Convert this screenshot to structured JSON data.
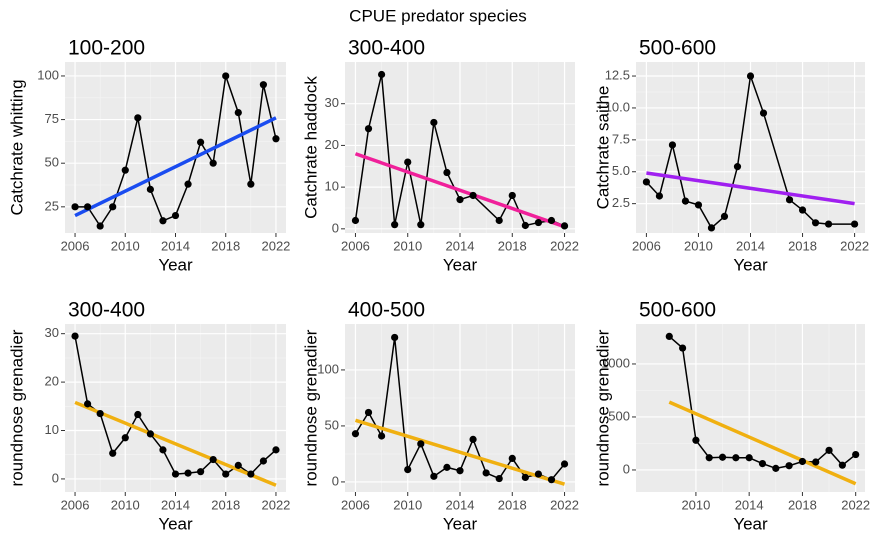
{
  "title": "CPUE predator species",
  "chart_data": [
    {
      "type": "line",
      "title": "100-200",
      "xlabel": "Year",
      "ylabel": "Catchrate whitting",
      "x": [
        2006,
        2007,
        2008,
        2009,
        2010,
        2011,
        2012,
        2013,
        2014,
        2015,
        2016,
        2017,
        2018,
        2019,
        2020,
        2021,
        2022
      ],
      "series": [
        {
          "color": "#000000",
          "values": [
            25,
            25,
            14,
            25,
            46,
            76,
            35,
            17,
            20,
            38,
            62,
            50,
            100,
            79,
            38,
            95,
            64
          ]
        }
      ],
      "trend": {
        "x": [
          2006,
          2022
        ],
        "values": [
          20,
          76
        ],
        "color": "#1a4cf0"
      },
      "xlim": [
        2005.2,
        2022.8
      ],
      "xticks": [
        2006,
        2010,
        2014,
        2018,
        2022
      ],
      "ylim": [
        10,
        108
      ],
      "yticks": [
        25,
        50,
        75,
        100
      ],
      "grid": true
    },
    {
      "type": "line",
      "title": "300-400",
      "xlabel": "Year",
      "ylabel": "Catchrate haddock",
      "x": [
        2006,
        2007,
        2008,
        2009,
        2010,
        2011,
        2012,
        2013,
        2014,
        2015,
        2017,
        2018,
        2019,
        2020,
        2021,
        2022
      ],
      "series": [
        {
          "color": "#000000",
          "values": [
            2,
            24,
            37,
            1,
            16,
            1,
            25.5,
            13.5,
            7,
            8,
            2,
            8,
            0.8,
            1.5,
            2,
            0.7
          ]
        }
      ],
      "trend": {
        "x": [
          2006,
          2022
        ],
        "values": [
          18,
          0.5
        ],
        "color": "#f0209a"
      },
      "xlim": [
        2005.2,
        2022.8
      ],
      "xticks": [
        2006,
        2010,
        2014,
        2018,
        2022
      ],
      "ylim": [
        -1,
        40
      ],
      "yticks": [
        0,
        10,
        20,
        30
      ],
      "grid": true
    },
    {
      "type": "line",
      "title": "500-600",
      "xlabel": "Year",
      "ylabel": "Catchrate saithe",
      "x": [
        2006,
        2007,
        2008,
        2009,
        2010,
        2011,
        2012,
        2013,
        2014,
        2015,
        2017,
        2018,
        2019,
        2020,
        2022
      ],
      "series": [
        {
          "color": "#000000",
          "values": [
            4.2,
            3.1,
            7.1,
            2.7,
            2.4,
            0.6,
            1.5,
            5.4,
            12.5,
            9.6,
            2.8,
            2.0,
            1.0,
            0.9,
            0.9
          ]
        }
      ],
      "trend": {
        "x": [
          2006,
          2022
        ],
        "values": [
          4.9,
          2.5
        ],
        "color": "#a020f0"
      },
      "xlim": [
        2005.2,
        2022.8
      ],
      "xticks": [
        2006,
        2010,
        2014,
        2018,
        2022
      ],
      "ylim": [
        0.2,
        13.6
      ],
      "yticks": [
        2.5,
        {
          "value": 5,
          "label": "5.0"
        },
        7.5,
        {
          "value": 10,
          "label": "10.0"
        },
        12.5
      ],
      "grid": true
    },
    {
      "type": "line",
      "title": "300-400",
      "xlabel": "Year",
      "ylabel": "roundnose grenadier",
      "x": [
        2006,
        2007,
        2008,
        2009,
        2010,
        2011,
        2012,
        2013,
        2014,
        2015,
        2016,
        2017,
        2018,
        2019,
        2020,
        2021,
        2022
      ],
      "series": [
        {
          "color": "#000000",
          "values": [
            29.5,
            15.5,
            13.5,
            5.3,
            8.5,
            13.3,
            9.3,
            6,
            1,
            1.2,
            1.5,
            4,
            1,
            2.8,
            1,
            3.7,
            6
          ]
        }
      ],
      "trend": {
        "x": [
          2006,
          2022
        ],
        "values": [
          15.8,
          -1.3
        ],
        "color": "#f0b010"
      },
      "xlim": [
        2005.2,
        2022.8
      ],
      "xticks": [
        2006,
        2010,
        2014,
        2018,
        2022
      ],
      "ylim": [
        -2.7,
        32
      ],
      "yticks": [
        0,
        10,
        20,
        30
      ],
      "grid": true
    },
    {
      "type": "line",
      "title": "400-500",
      "xlabel": "Year",
      "ylabel": "roundnose grenadier",
      "x": [
        2006,
        2007,
        2008,
        2009,
        2010,
        2011,
        2012,
        2013,
        2014,
        2015,
        2016,
        2017,
        2018,
        2019,
        2020,
        2021,
        2022
      ],
      "series": [
        {
          "color": "#000000",
          "values": [
            43,
            62,
            41,
            129,
            11,
            34,
            5,
            13,
            10,
            38,
            8,
            3,
            21,
            4,
            7,
            2,
            16
          ]
        }
      ],
      "trend": {
        "x": [
          2006,
          2022
        ],
        "values": [
          55,
          -2
        ],
        "color": "#f0b010"
      },
      "xlim": [
        2005.2,
        2022.8
      ],
      "xticks": [
        2006,
        2010,
        2014,
        2018,
        2022
      ],
      "ylim": [
        -9,
        141
      ],
      "yticks": [
        0,
        50,
        100
      ],
      "grid": true
    },
    {
      "type": "line",
      "title": "500-600",
      "xlabel": "Year",
      "ylabel": "roundnose grenadier",
      "x": [
        2008,
        2009,
        2010,
        2011,
        2012,
        2013,
        2014,
        2015,
        2016,
        2017,
        2018,
        2019,
        2020,
        2021,
        2022
      ],
      "series": [
        {
          "color": "#000000",
          "values": [
            1260,
            1150,
            280,
            115,
            120,
            115,
            115,
            60,
            15,
            40,
            80,
            75,
            185,
            45,
            145
          ]
        }
      ],
      "trend": {
        "x": [
          2008,
          2022
        ],
        "values": [
          640,
          -130
        ],
        "color": "#f0b010"
      },
      "xlim": [
        2005.5,
        2022.7
      ],
      "xticks": [
        2010,
        2014,
        2018,
        2022
      ],
      "ylim": [
        -208,
        1377
      ],
      "yticks": [
        0,
        500,
        1000
      ],
      "grid": true
    }
  ]
}
